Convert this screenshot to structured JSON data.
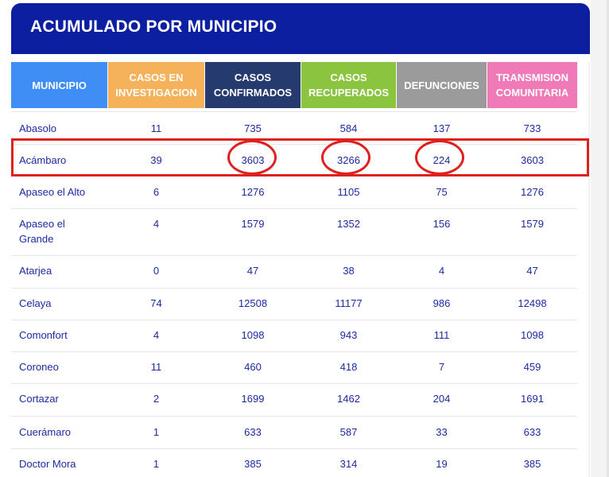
{
  "title": "ACUMULADO POR MUNICIPIO",
  "headers": [
    {
      "line1": "MUNICIPIO",
      "line2": "",
      "color": "#3f8ef5"
    },
    {
      "line1": "CASOS EN",
      "line2": "INVESTIGACION",
      "color": "#f5b25a"
    },
    {
      "line1": "CASOS",
      "line2": "CONFIRMADOS",
      "color": "#253a6e"
    },
    {
      "line1": "CASOS",
      "line2": "RECUPERADOS",
      "color": "#8bc53f"
    },
    {
      "line1": "DEFUNCIONES",
      "line2": "",
      "color": "#9b9b9b"
    },
    {
      "line1": "TRANSMISION",
      "line2": "COMUNITARIA",
      "color": "#f07ab8"
    }
  ],
  "rows": [
    {
      "name": "Abasolo",
      "inv": "11",
      "conf": "735",
      "rec": "584",
      "def": "137",
      "com": "733"
    },
    {
      "name": "Acámbaro",
      "inv": "39",
      "conf": "3603",
      "rec": "3266",
      "def": "224",
      "com": "3603"
    },
    {
      "name": "Apaseo el Alto",
      "inv": "6",
      "conf": "1276",
      "rec": "1105",
      "def": "75",
      "com": "1276"
    },
    {
      "name": "Apaseo el Grande",
      "inv": "4",
      "conf": "1579",
      "rec": "1352",
      "def": "156",
      "com": "1579"
    },
    {
      "name": "Atarjea",
      "inv": "0",
      "conf": "47",
      "rec": "38",
      "def": "4",
      "com": "47"
    },
    {
      "name": "Celaya",
      "inv": "74",
      "conf": "12508",
      "rec": "11177",
      "def": "986",
      "com": "12498"
    },
    {
      "name": "Comonfort",
      "inv": "4",
      "conf": "1098",
      "rec": "943",
      "def": "111",
      "com": "1098"
    },
    {
      "name": "Coroneo",
      "inv": "11",
      "conf": "460",
      "rec": "418",
      "def": "7",
      "com": "459"
    },
    {
      "name": "Cortazar",
      "inv": "2",
      "conf": "1699",
      "rec": "1462",
      "def": "204",
      "com": "1691"
    },
    {
      "name": "Cuerámaro",
      "inv": "1",
      "conf": "633",
      "rec": "587",
      "def": "33",
      "com": "633"
    },
    {
      "name": "Doctor Mora",
      "inv": "1",
      "conf": "385",
      "rec": "314",
      "def": "19",
      "com": "385"
    }
  ],
  "annotation_color": "#e01f1f"
}
